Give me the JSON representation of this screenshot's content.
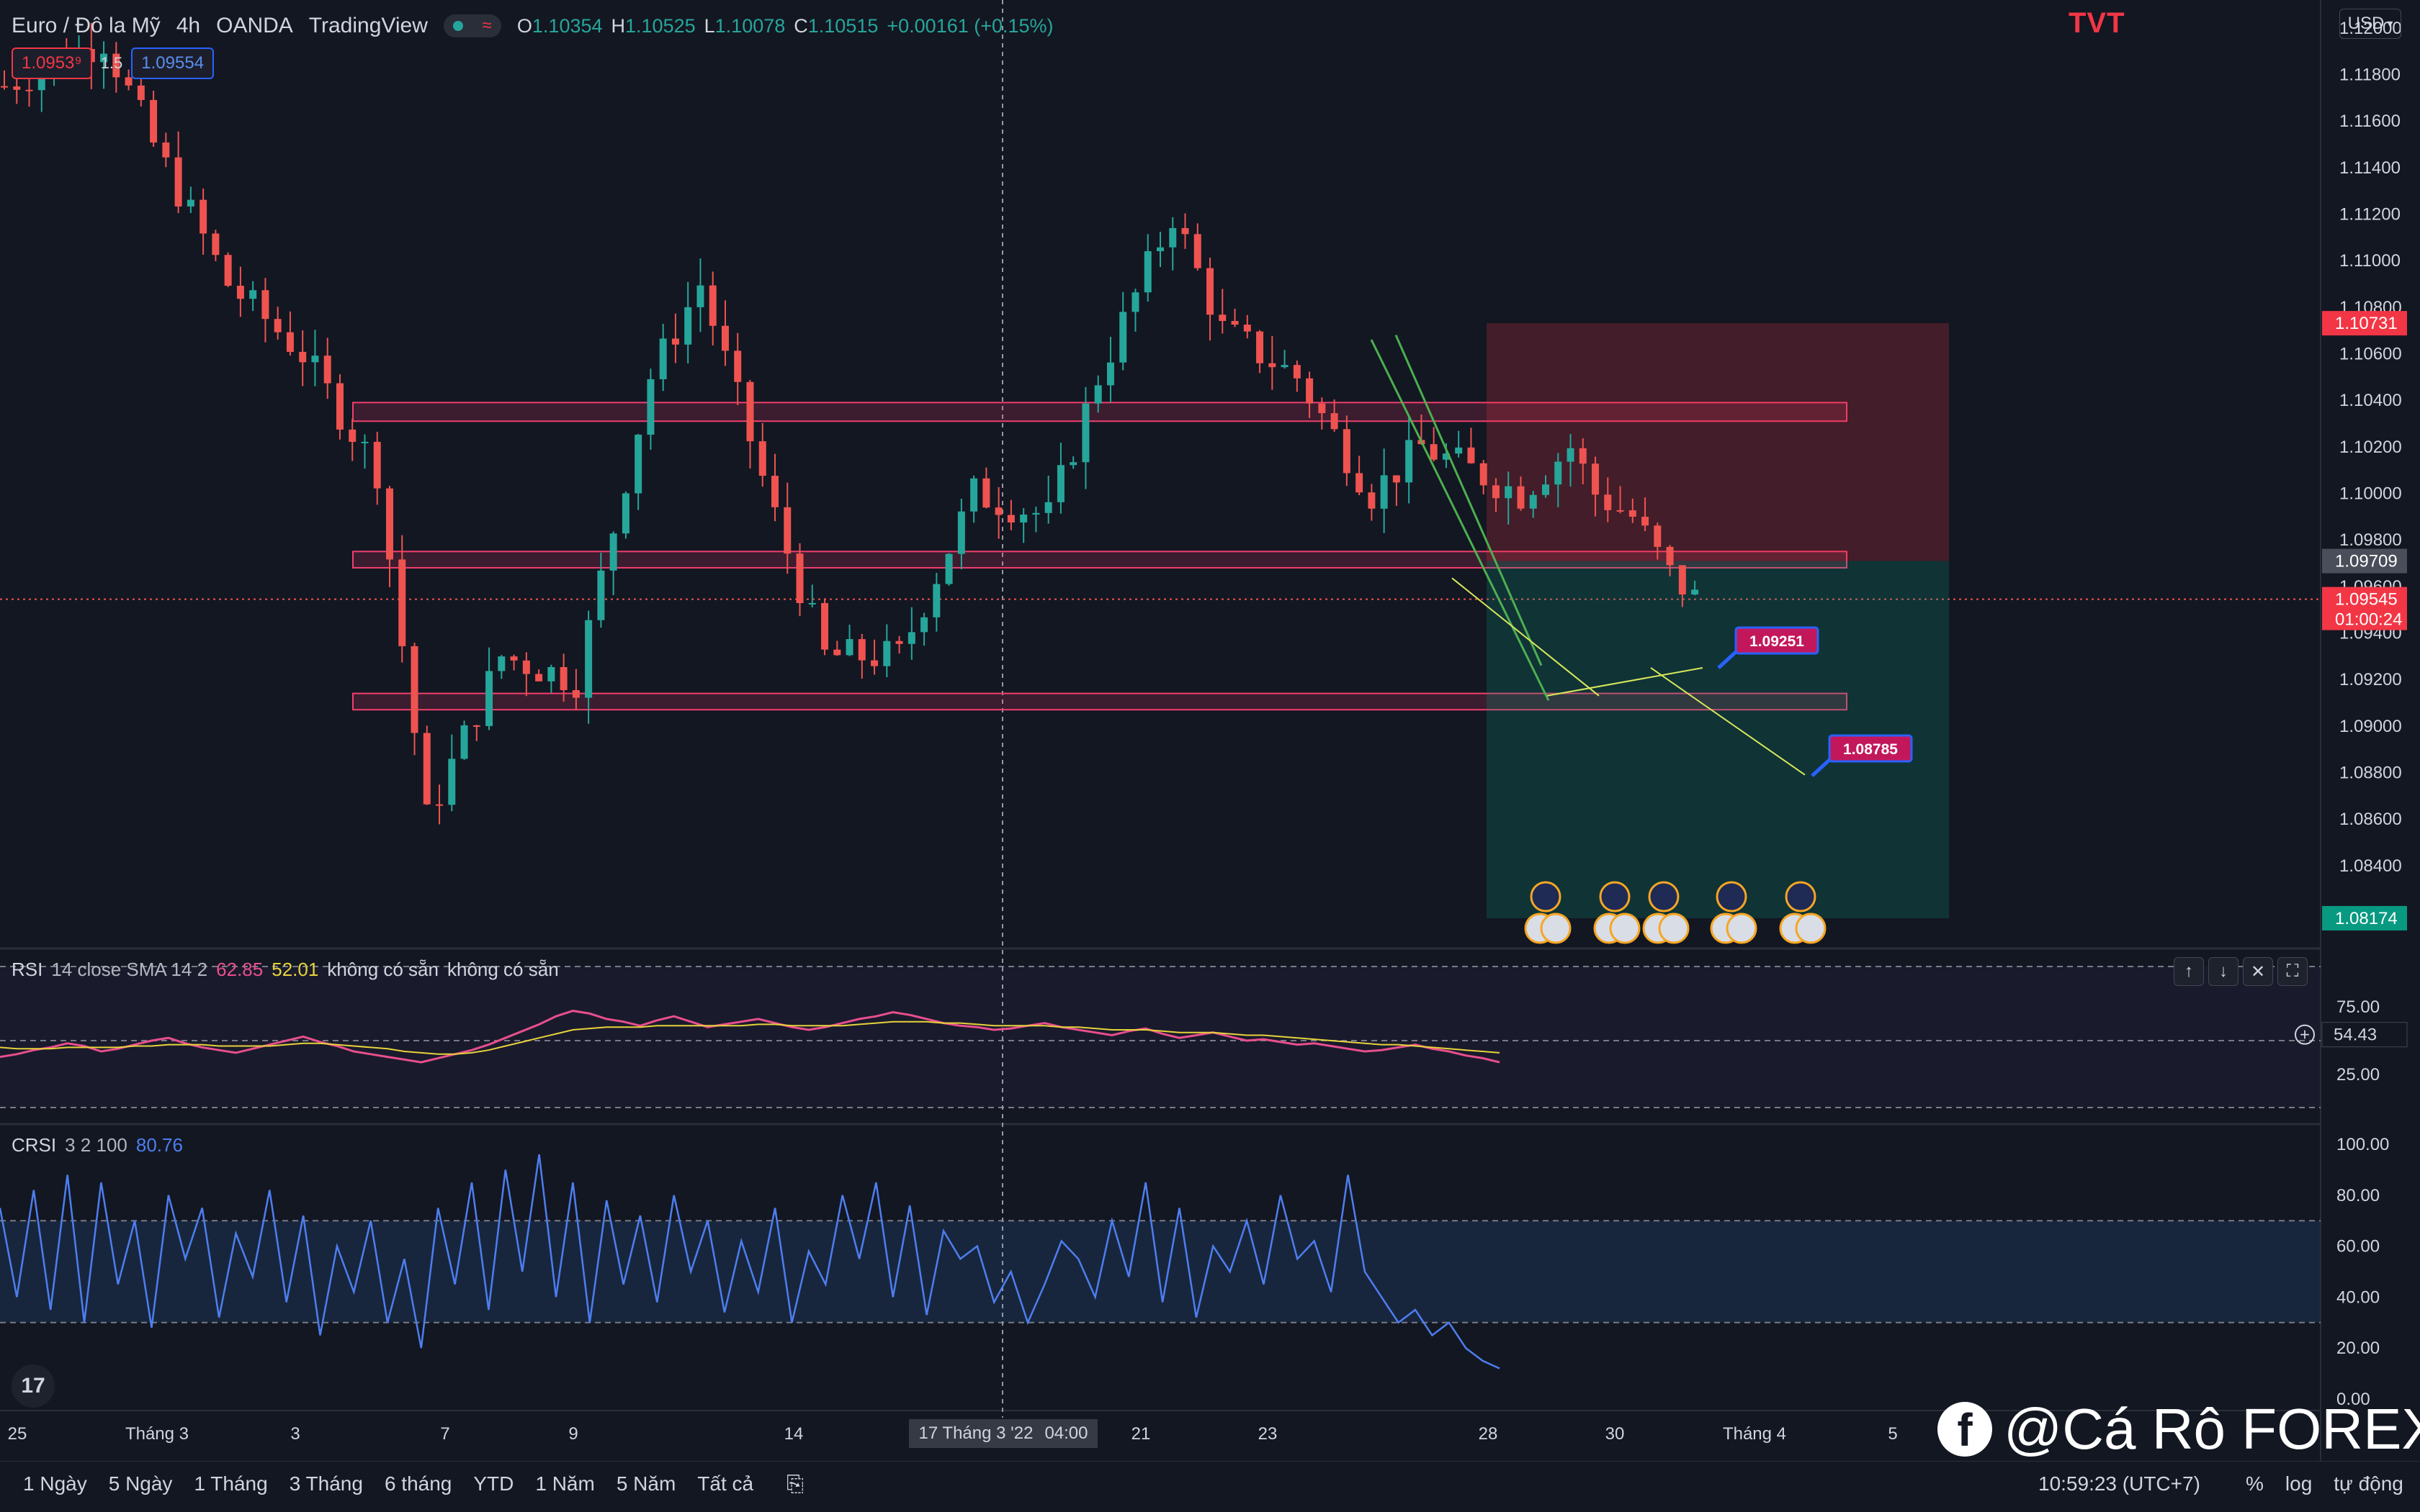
{
  "header": {
    "symbol": "Euro / Đô la Mỹ",
    "interval": "4h",
    "broker": "OANDA",
    "platform": "TradingView",
    "ohlc": {
      "o_label": "O",
      "o": "1.10354",
      "h_label": "H",
      "h": "1.10525",
      "l_label": "L",
      "l": "1.10078",
      "c_label": "C",
      "c": "1.10515",
      "change": "+0.00161 (+0.15%)"
    }
  },
  "trade": {
    "sell": "1.0953⁹",
    "spread": "1.5",
    "buy": "1.09554"
  },
  "brand": "TVT",
  "currency": "USD",
  "price_axis": {
    "ticks": [
      "1.12000",
      "1.11800",
      "1.11600",
      "1.11400",
      "1.11200",
      "1.11000",
      "1.10800",
      "1.10600",
      "1.10400",
      "1.10200",
      "1.10000",
      "1.09800",
      "1.09600",
      "1.09400",
      "1.09200",
      "1.09000",
      "1.08800",
      "1.08600",
      "1.08400"
    ],
    "badges": {
      "stop": "1.10731",
      "entry": "1.09709",
      "last_price": "1.09545",
      "countdown": "01:00:24",
      "target": "1.08174"
    }
  },
  "annotations": {
    "target1": "1.09251",
    "target2": "1.08785"
  },
  "rsi_pane": {
    "name": "RSI",
    "params": "14 close SMA 14 2",
    "value": "62.85",
    "sma": "52.01",
    "na1": "không có sẵn",
    "na2": "không có sẵn",
    "ticks": [
      "75.00",
      "25.00"
    ],
    "current": "54.43"
  },
  "crsi_pane": {
    "name": "CRSI",
    "params": "3 2 100",
    "value": "80.76",
    "ticks": [
      "100.00",
      "80.00",
      "60.00",
      "40.00",
      "20.00",
      "0.00"
    ]
  },
  "time_axis": {
    "labels": [
      "25",
      "Tháng 3",
      "3",
      "7",
      "9",
      "14",
      "21",
      "23",
      "28",
      "30",
      "Tháng 4",
      "5"
    ],
    "crosshair": "17 Tháng 3 '22",
    "crosshair_time": "04:00"
  },
  "bottom": {
    "ranges": [
      "1 Ngày",
      "5 Ngày",
      "1 Tháng",
      "3 Tháng",
      "6 tháng",
      "YTD",
      "1 Năm",
      "5 Năm",
      "Tất cả"
    ],
    "clock": "10:59:23 (UTC+7)",
    "percent": "%",
    "log": "log",
    "auto": "tự động"
  },
  "watermark": "@Cá Rô FOREX",
  "pane_tools": [
    "move-up-icon",
    "move-down-icon",
    "close-icon",
    "maximize-icon"
  ],
  "colors": {
    "up": "#26a69a",
    "down": "#ef5350",
    "bg": "#131722",
    "rsi": "#e84f8c",
    "rsi_sma": "#e6d33a",
    "crsi": "#4d7ef0",
    "zone": "#f23e6e"
  },
  "chart_data": [
    {
      "type": "candlestick",
      "title": "Euro / Đô la Mỹ · 4h · OANDA",
      "ylim": [
        1.0805,
        1.1212
      ],
      "x_range_bars": [
        0,
        172
      ],
      "last_close": 1.09545,
      "zones": [
        {
          "low": 1.1031,
          "high": 1.1039
        },
        {
          "low": 1.0968,
          "high": 1.0975
        },
        {
          "low": 1.0907,
          "high": 1.0914
        }
      ],
      "position": {
        "type": "short",
        "entry": 1.09709,
        "stop": 1.10731,
        "target": 1.08174
      },
      "projection": [
        1.0945,
        1.0913,
        1.0925,
        1.0879
      ],
      "trendlines": [
        [
          1.1066,
          1.0911
        ],
        [
          1.1068,
          1.0926
        ]
      ]
    },
    {
      "type": "line",
      "title": "RSI 14 close SMA 14 2",
      "ylim": [
        0,
        100
      ],
      "bands": [
        75,
        50,
        25
      ],
      "series": [
        {
          "name": "RSI",
          "values": [
            38,
            40,
            43,
            45,
            48,
            46,
            42,
            44,
            47,
            50,
            52,
            48,
            45,
            43,
            41,
            44,
            47,
            50,
            53,
            49,
            46,
            42,
            40,
            38,
            36,
            34,
            37,
            40,
            43,
            47,
            52,
            57,
            62,
            68,
            72,
            70,
            66,
            64,
            61,
            65,
            68,
            64,
            60,
            62,
            64,
            66,
            63,
            60,
            58,
            60,
            63,
            66,
            68,
            71,
            69,
            66,
            63,
            61,
            60,
            58,
            59,
            61,
            63,
            60,
            58,
            56,
            54,
            57,
            59,
            55,
            52,
            54,
            56,
            53,
            50,
            51,
            49,
            47,
            48,
            46,
            44,
            42,
            43,
            45,
            47,
            44,
            42,
            39,
            37,
            34
          ]
        },
        {
          "name": "SMA",
          "values": [
            45,
            44,
            44,
            44,
            45,
            45,
            45,
            45,
            46,
            46,
            47,
            47,
            47,
            46,
            46,
            46,
            46,
            47,
            48,
            48,
            47,
            46,
            45,
            44,
            42,
            41,
            40,
            40,
            41,
            43,
            46,
            49,
            52,
            55,
            58,
            59,
            60,
            60,
            60,
            61,
            61,
            61,
            61,
            61,
            61,
            62,
            62,
            61,
            61,
            61,
            61,
            62,
            63,
            64,
            64,
            64,
            63,
            63,
            62,
            61,
            61,
            61,
            61,
            60,
            60,
            59,
            58,
            58,
            58,
            57,
            56,
            56,
            56,
            55,
            54,
            54,
            53,
            52,
            51,
            50,
            49,
            48,
            47,
            47,
            46,
            45,
            44,
            43,
            42,
            41
          ]
        }
      ]
    },
    {
      "type": "line",
      "title": "CRSI 3 2 100",
      "ylim": [
        0,
        100
      ],
      "bands": [
        70,
        30
      ],
      "series": [
        {
          "name": "CRSI",
          "values": [
            75,
            40,
            82,
            35,
            88,
            30,
            85,
            45,
            70,
            28,
            80,
            55,
            75,
            32,
            65,
            48,
            82,
            38,
            72,
            25,
            60,
            42,
            70,
            30,
            55,
            20,
            75,
            45,
            85,
            35,
            90,
            50,
            96,
            40,
            85,
            30,
            78,
            45,
            72,
            38,
            80,
            50,
            70,
            34,
            62,
            42,
            75,
            30,
            58,
            45,
            80,
            55,
            85,
            40,
            76,
            33,
            66,
            55,
            60,
            38,
            50,
            30,
            45,
            62,
            55,
            40,
            70,
            48,
            85,
            38,
            75,
            32,
            60,
            50,
            70,
            45,
            80,
            55,
            62,
            42,
            88,
            50,
            40,
            30,
            35,
            25,
            30,
            20,
            15,
            12
          ]
        }
      ]
    }
  ]
}
